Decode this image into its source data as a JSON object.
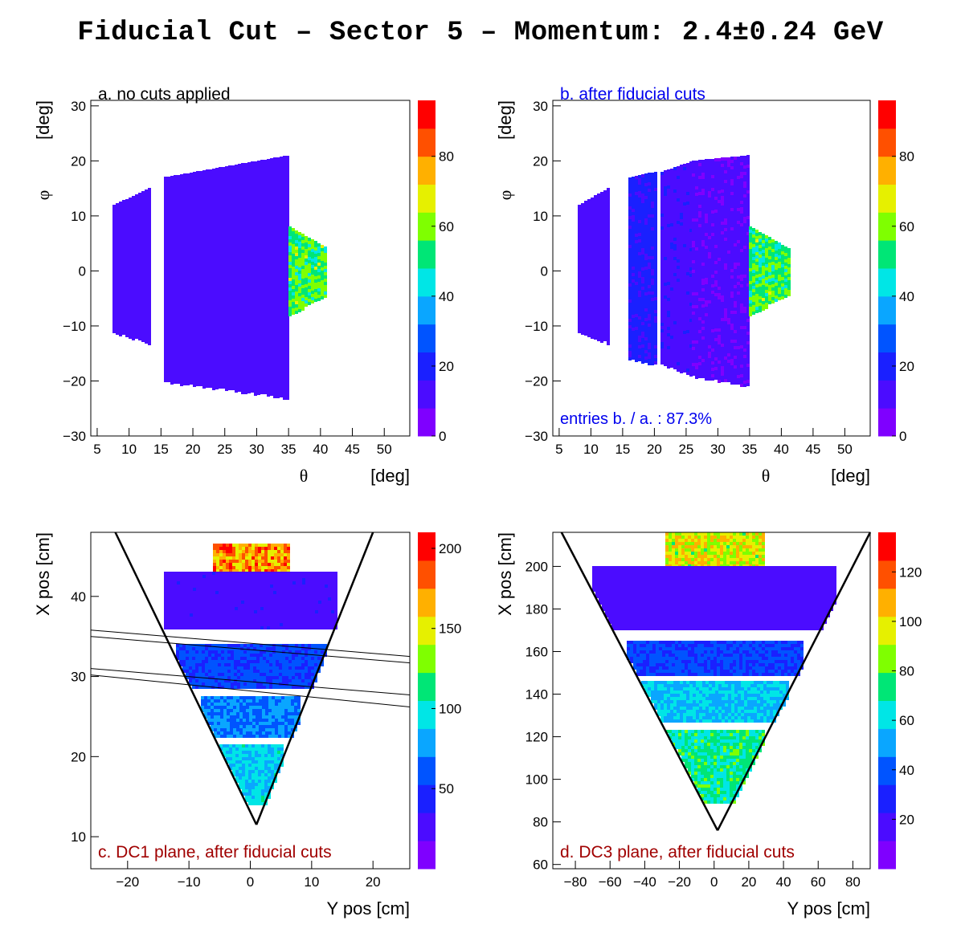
{
  "title": "Fiducial Cut – Sector 5 – Momentum: 2.4±0.24 GeV",
  "colors": {
    "palette": [
      "#7f00ff",
      "#4b0cff",
      "#1a20ff",
      "#0054ff",
      "#0aa6ff",
      "#00e6e6",
      "#00e676",
      "#7fff00",
      "#e6f000",
      "#ffb000",
      "#ff5000",
      "#ff0000"
    ],
    "label_black": "#000000",
    "label_blue": "#0000ee",
    "label_red": "#a00000"
  },
  "chart_data": [
    {
      "id": "a",
      "type": "heatmap",
      "label": "a. no cuts applied",
      "label_color": "#000000",
      "xlabel_symbol": "θ",
      "xlabel_unit": "[deg]",
      "ylabel_symbol": "φ",
      "ylabel_unit": "[deg]",
      "xlim": [
        4,
        54
      ],
      "ylim": [
        -30,
        31
      ],
      "xticks": [
        "5",
        "10",
        "15",
        "20",
        "25",
        "30",
        "35",
        "40",
        "45",
        "50"
      ],
      "xtick_values": [
        5,
        10,
        15,
        20,
        25,
        30,
        35,
        40,
        45,
        50
      ],
      "yticks": [
        "−30",
        "−20",
        "−10",
        "0",
        "10",
        "20",
        "30"
      ],
      "ytick_values": [
        -30,
        -20,
        -10,
        0,
        10,
        20,
        30
      ],
      "zlim": [
        0,
        96
      ],
      "zticks": [
        "0",
        "20",
        "40",
        "60",
        "80"
      ],
      "ztick_values": [
        0,
        20,
        40,
        60,
        80
      ],
      "regions": [
        {
          "shape": "band",
          "x": [
            7.5,
            13.0
          ],
          "y_top": [
            12,
            15
          ],
          "y_bot": [
            -11,
            -13
          ],
          "z": 10
        },
        {
          "shape": "band",
          "x": [
            15.5,
            35.0
          ],
          "y_top": [
            17,
            21
          ],
          "y_bot": [
            -20,
            -23
          ],
          "z": 12
        },
        {
          "shape": "band",
          "x": [
            35.0,
            41.0
          ],
          "y_top": [
            8,
            4
          ],
          "y_bot": [
            -8,
            -4
          ],
          "z": 55
        }
      ]
    },
    {
      "id": "b",
      "type": "heatmap",
      "label": "b. after fiducial cuts",
      "label_color": "#0000ee",
      "annotation": "entries b. / a. : 87.3%",
      "xlabel_symbol": "θ",
      "xlabel_unit": "[deg]",
      "ylabel_symbol": "φ",
      "ylabel_unit": "[deg]",
      "xlim": [
        4,
        54
      ],
      "ylim": [
        -30,
        31
      ],
      "xticks": [
        "5",
        "10",
        "15",
        "20",
        "25",
        "30",
        "35",
        "40",
        "45",
        "50"
      ],
      "xtick_values": [
        5,
        10,
        15,
        20,
        25,
        30,
        35,
        40,
        45,
        50
      ],
      "yticks": [
        "−30",
        "−20",
        "−10",
        "0",
        "10",
        "20",
        "30"
      ],
      "ytick_values": [
        -30,
        -20,
        -10,
        0,
        10,
        20,
        30
      ],
      "zlim": [
        0,
        96
      ],
      "zticks": [
        "0",
        "20",
        "40",
        "60",
        "80"
      ],
      "ztick_values": [
        0,
        20,
        40,
        60,
        80
      ],
      "regions": [
        {
          "shape": "band",
          "x": [
            8.0,
            12.5
          ],
          "y_top": [
            12,
            15
          ],
          "y_bot": [
            -11,
            -13
          ],
          "z": 10
        },
        {
          "shape": "band",
          "x": [
            16.0,
            20.0
          ],
          "y_top": [
            17,
            18
          ],
          "y_bot": [
            -16,
            -17
          ],
          "z": 18
        },
        {
          "shape": "band",
          "x": [
            21.0,
            26.0
          ],
          "y_top": [
            18,
            20
          ],
          "y_bot": [
            -17,
            -19
          ],
          "z": 14
        },
        {
          "shape": "band",
          "x": [
            26.0,
            35.0
          ],
          "y_top": [
            20,
            21
          ],
          "y_bot": [
            -19,
            -21
          ],
          "z": 9
        },
        {
          "shape": "band",
          "x": [
            35.0,
            41.0
          ],
          "y_top": [
            8,
            4
          ],
          "y_bot": [
            -8,
            -4
          ],
          "z": 55
        }
      ]
    },
    {
      "id": "c",
      "type": "heatmap",
      "label": "c. DC1 plane, after fiducial cuts",
      "label_color": "#a00000",
      "xlabel": "Y pos [cm]",
      "ylabel": "X pos [cm]",
      "xlim": [
        -26,
        26
      ],
      "ylim": [
        6,
        48
      ],
      "xticks": [
        "−20",
        "−10",
        "0",
        "10",
        "20"
      ],
      "xtick_values": [
        -20,
        -10,
        0,
        10,
        20
      ],
      "yticks": [
        "10",
        "20",
        "30",
        "40"
      ],
      "ytick_values": [
        10,
        20,
        30,
        40
      ],
      "zlim": [
        0,
        210
      ],
      "zticks": [
        "50",
        "100",
        "150",
        "200"
      ],
      "ztick_values": [
        50,
        100,
        150,
        200
      ],
      "cone": {
        "apex": [
          1,
          11.5
        ],
        "top_y": 48,
        "left_top_x": -22,
        "right_top_x": 20
      },
      "cut_lines": [
        {
          "x": [
            -26,
            26
          ],
          "y": [
            35.8,
            32.5
          ]
        },
        {
          "x": [
            -26,
            26
          ],
          "y": [
            35.0,
            31.7
          ]
        },
        {
          "x": [
            -26,
            26
          ],
          "y": [
            31.0,
            27.7
          ]
        },
        {
          "x": [
            -26,
            26
          ],
          "y": [
            30.2,
            26.2
          ]
        }
      ],
      "regions": [
        {
          "shape": "rect",
          "x": [
            -6,
            6
          ],
          "y": [
            43,
            46.5
          ],
          "z": 170
        },
        {
          "shape": "band",
          "x": [
            -14,
            14
          ],
          "y": [
            36,
            43
          ],
          "z": 30
        },
        {
          "shape": "band",
          "x": [
            -12,
            12
          ],
          "y": [
            28.5,
            34
          ],
          "z": 55
        },
        {
          "shape": "band",
          "x": [
            -8,
            8
          ],
          "y": [
            22.5,
            27.5
          ],
          "z": 70
        },
        {
          "shape": "band",
          "x": [
            -5,
            5
          ],
          "y": [
            14,
            21.5
          ],
          "z": 90
        }
      ]
    },
    {
      "id": "d",
      "type": "heatmap",
      "label": "d. DC3 plane, after fiducial cuts",
      "label_color": "#a00000",
      "xlabel": "Y pos [cm]",
      "ylabel": "X pos [cm]",
      "xlim": [
        -93,
        90
      ],
      "ylim": [
        58,
        216
      ],
      "xticks": [
        "−80",
        "−60",
        "−40",
        "−20",
        "0",
        "20",
        "40",
        "60",
        "80"
      ],
      "xtick_values": [
        -80,
        -60,
        -40,
        -20,
        0,
        20,
        40,
        60,
        80
      ],
      "yticks": [
        "60",
        "80",
        "100",
        "120",
        "140",
        "160",
        "180",
        "200"
      ],
      "ytick_values": [
        60,
        80,
        100,
        120,
        140,
        160,
        180,
        200
      ],
      "zlim": [
        0,
        136
      ],
      "zticks": [
        "20",
        "40",
        "60",
        "80",
        "100",
        "120"
      ],
      "ztick_values": [
        20,
        40,
        60,
        80,
        100,
        120
      ],
      "cone": {
        "apex": [
          2,
          76
        ],
        "top_y": 216,
        "left_top_x": -88,
        "right_top_x": 90
      },
      "regions": [
        {
          "shape": "rect",
          "x": [
            -28,
            28
          ],
          "y": [
            200,
            216
          ],
          "z": 95
        },
        {
          "shape": "band",
          "x": [
            -70,
            70
          ],
          "y": [
            170,
            200
          ],
          "z": 15
        },
        {
          "shape": "band",
          "x": [
            -50,
            50
          ],
          "y": [
            150,
            165
          ],
          "z": 35
        },
        {
          "shape": "band",
          "x": [
            -42,
            42
          ],
          "y": [
            128,
            146
          ],
          "z": 55
        },
        {
          "shape": "band",
          "x": [
            -28,
            28
          ],
          "y": [
            90,
            123
          ],
          "z": 70
        }
      ]
    }
  ]
}
